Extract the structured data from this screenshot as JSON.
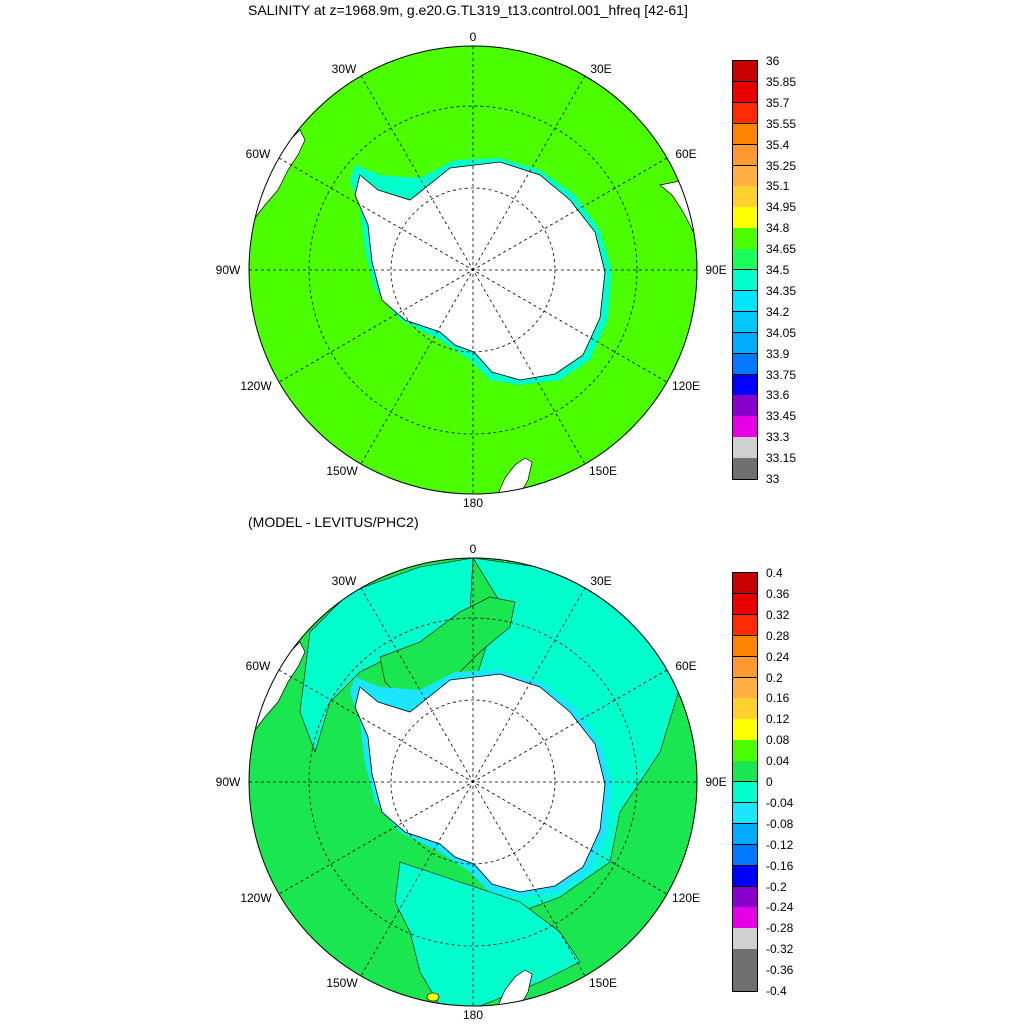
{
  "panels": [
    {
      "id": "top",
      "title": "SALINITY at z=1968.9m, g.e20.G.TL319_t13.control.001_hfreq [42-61]",
      "longitude_labels": [
        "0",
        "30E",
        "60E",
        "90E",
        "120E",
        "150E",
        "180",
        "150W",
        "120W",
        "90W",
        "60W",
        "30W"
      ],
      "colorbar": {
        "levels": [
          "36",
          "35.85",
          "35.7",
          "35.55",
          "35.4",
          "35.25",
          "35.1",
          "34.95",
          "34.8",
          "34.65",
          "34.5",
          "34.35",
          "34.2",
          "34.05",
          "33.9",
          "33.75",
          "33.6",
          "33.45",
          "33.3",
          "33.15",
          "33"
        ],
        "colors": [
          "#c80000",
          "#e60000",
          "#ff2a00",
          "#ff8400",
          "#ff9a30",
          "#ffb040",
          "#ffd030",
          "#ffff00",
          "#4cff00",
          "#1aff5c",
          "#00ffcc",
          "#00e6ff",
          "#00c8ff",
          "#00aaff",
          "#0078ff",
          "#0000ff",
          "#8800cc",
          "#e600e6",
          "#d0d0d0",
          "#707070"
        ]
      },
      "ocean_color": "#4cff00",
      "land_color": "#ffffff",
      "coastal_fringe_color": "#00ffcc"
    },
    {
      "id": "bottom",
      "title": "(MODEL - LEVITUS/PHC2)",
      "longitude_labels": [
        "0",
        "30E",
        "60E",
        "90E",
        "120E",
        "150E",
        "180",
        "150W",
        "120W",
        "90W",
        "60W",
        "30W"
      ],
      "colorbar": {
        "levels": [
          "0.4",
          "0.36",
          "0.32",
          "0.28",
          "0.24",
          "0.2",
          "0.16",
          "0.12",
          "0.08",
          "0.04",
          "0",
          "-0.04",
          "-0.08",
          "-0.12",
          "-0.16",
          "-0.2",
          "-0.24",
          "-0.28",
          "-0.32",
          "-0.36",
          "-0.4"
        ],
        "colors": [
          "#c80000",
          "#e60000",
          "#ff2a00",
          "#ff8400",
          "#ff9a30",
          "#ffb040",
          "#ffd030",
          "#ffff00",
          "#4cff00",
          "#1ae650",
          "#00ffcc",
          "#1ae6ff",
          "#00aaff",
          "#0078ff",
          "#0000ff",
          "#8800cc",
          "#e600e6",
          "#d0d0d0",
          "#707070",
          "#707070"
        ]
      },
      "dominant_colors": [
        "#1ae650",
        "#00ffcc",
        "#4cff00",
        "#ffff00"
      ],
      "land_color": "#ffffff"
    }
  ]
}
